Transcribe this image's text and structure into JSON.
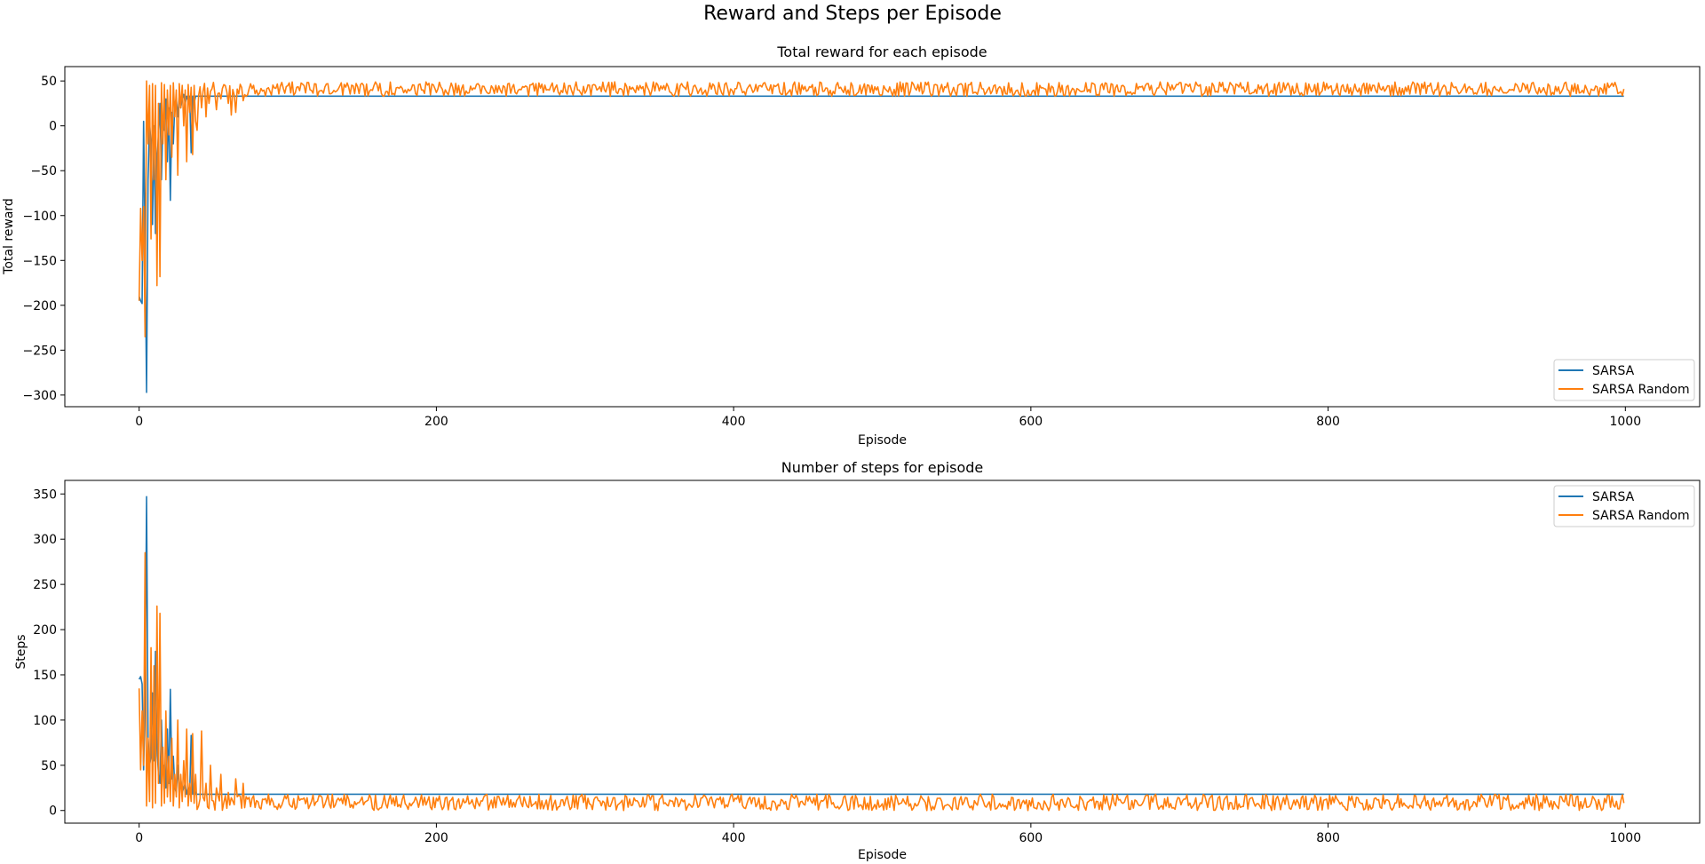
{
  "figure": {
    "title": "Reward and Steps per Episode"
  },
  "colors": {
    "sarsa": "#1f77b4",
    "sarsa_random": "#ff7f0e",
    "axis": "#000000",
    "background": "#ffffff"
  },
  "chart_data": [
    {
      "type": "line",
      "title": "Total reward for each episode",
      "xlabel": "Episode",
      "ylabel": "Total reward",
      "xlim": [
        -50,
        1050
      ],
      "ylim": [
        -313,
        66
      ],
      "xticks": [
        0,
        200,
        400,
        600,
        800,
        1000
      ],
      "yticks": [
        -300,
        -250,
        -200,
        -150,
        -100,
        -50,
        0,
        50
      ],
      "grid": false,
      "legend_position": "lower-right",
      "series": [
        {
          "name": "SARSA",
          "color": "#1f77b4",
          "early_points": [
            [
              0,
              -190
            ],
            [
              1,
              -195
            ],
            [
              2,
              -198
            ],
            [
              3,
              5
            ],
            [
              4,
              -130
            ],
            [
              5,
              -297
            ],
            [
              6,
              -60
            ],
            [
              7,
              3
            ],
            [
              8,
              -20
            ],
            [
              9,
              -110
            ],
            [
              10,
              0
            ],
            [
              11,
              -120
            ],
            [
              12,
              -40
            ],
            [
              13,
              -10
            ],
            [
              14,
              25
            ],
            [
              15,
              -60
            ],
            [
              16,
              10
            ],
            [
              17,
              -5
            ],
            [
              18,
              30
            ],
            [
              19,
              -40
            ],
            [
              20,
              20
            ],
            [
              21,
              -83
            ],
            [
              22,
              15
            ],
            [
              23,
              -20
            ],
            [
              24,
              25
            ],
            [
              25,
              30
            ],
            [
              26,
              10
            ],
            [
              27,
              33
            ],
            [
              28,
              20
            ],
            [
              29,
              30
            ],
            [
              30,
              35
            ],
            [
              31,
              25
            ],
            [
              32,
              33
            ],
            [
              33,
              28
            ],
            [
              34,
              33
            ],
            [
              35,
              -30
            ],
            [
              36,
              33
            ],
            [
              37,
              25
            ],
            [
              38,
              33
            ]
          ],
          "converged_value": 33,
          "converged_from_episode": 39,
          "last_episode": 999
        },
        {
          "name": "SARSA Random",
          "color": "#ff7f0e",
          "early_points": [
            [
              0,
              -195
            ],
            [
              1,
              -92
            ],
            [
              2,
              -150
            ],
            [
              3,
              -90
            ],
            [
              4,
              -235
            ],
            [
              5,
              50
            ],
            [
              6,
              -20
            ],
            [
              7,
              45
            ],
            [
              8,
              -126
            ],
            [
              9,
              47
            ],
            [
              10,
              -60
            ],
            [
              11,
              45
            ],
            [
              12,
              -178
            ],
            [
              13,
              25
            ],
            [
              14,
              -168
            ],
            [
              15,
              48
            ],
            [
              16,
              -20
            ],
            [
              17,
              46
            ],
            [
              18,
              -60
            ],
            [
              19,
              40
            ],
            [
              20,
              -10
            ],
            [
              21,
              45
            ],
            [
              22,
              -35
            ],
            [
              23,
              48
            ],
            [
              24,
              10
            ],
            [
              25,
              40
            ],
            [
              26,
              -55
            ],
            [
              27,
              47
            ],
            [
              28,
              20
            ],
            [
              29,
              45
            ],
            [
              30,
              0
            ],
            [
              31,
              40
            ],
            [
              32,
              -40
            ],
            [
              33,
              46
            ],
            [
              34,
              15
            ],
            [
              35,
              43
            ],
            [
              36,
              -32
            ],
            [
              37,
              45
            ],
            [
              38,
              5
            ]
          ],
          "noise_min": 33,
          "noise_max": 49,
          "noise_dips": [
            [
              39,
              -5
            ],
            [
              42,
              20
            ],
            [
              45,
              10
            ],
            [
              47,
              25
            ],
            [
              52,
              18
            ],
            [
              55,
              30
            ],
            [
              60,
              25
            ],
            [
              62,
              12
            ],
            [
              65,
              15
            ],
            [
              70,
              28
            ]
          ],
          "last_episode": 999
        }
      ]
    },
    {
      "type": "line",
      "title": "Number of steps for episode",
      "xlabel": "Episode",
      "ylabel": "Steps",
      "xlim": [
        -50,
        1050
      ],
      "ylim": [
        -14,
        365
      ],
      "xticks": [
        0,
        200,
        400,
        600,
        800,
        1000
      ],
      "yticks": [
        0,
        50,
        100,
        150,
        200,
        250,
        300,
        350
      ],
      "grid": false,
      "legend_position": "upper-right",
      "series": [
        {
          "name": "SARSA",
          "color": "#1f77b4",
          "early_points": [
            [
              0,
              145
            ],
            [
              1,
              148
            ],
            [
              2,
              140
            ],
            [
              3,
              45
            ],
            [
              4,
              120
            ],
            [
              5,
              347
            ],
            [
              6,
              80
            ],
            [
              7,
              50
            ],
            [
              8,
              60
            ],
            [
              9,
              130
            ],
            [
              10,
              55
            ],
            [
              11,
              176
            ],
            [
              12,
              70
            ],
            [
              13,
              40
            ],
            [
              14,
              30
            ],
            [
              15,
              100
            ],
            [
              16,
              40
            ],
            [
              17,
              50
            ],
            [
              18,
              25
            ],
            [
              19,
              90
            ],
            [
              20,
              30
            ],
            [
              21,
              134
            ],
            [
              22,
              35
            ],
            [
              23,
              60
            ],
            [
              24,
              25
            ],
            [
              25,
              20
            ],
            [
              26,
              50
            ],
            [
              27,
              18
            ],
            [
              28,
              35
            ],
            [
              29,
              20
            ],
            [
              30,
              25
            ],
            [
              31,
              30
            ],
            [
              32,
              18
            ],
            [
              33,
              25
            ],
            [
              34,
              18
            ],
            [
              35,
              83
            ],
            [
              36,
              18
            ],
            [
              37,
              25
            ],
            [
              38,
              18
            ]
          ],
          "converged_value": 18,
          "converged_from_episode": 39,
          "last_episode": 999
        },
        {
          "name": "SARSA Random",
          "color": "#ff7f0e",
          "early_points": [
            [
              0,
              135
            ],
            [
              1,
              45
            ],
            [
              2,
              110
            ],
            [
              3,
              50
            ],
            [
              4,
              285
            ],
            [
              5,
              5
            ],
            [
              6,
              80
            ],
            [
              7,
              10
            ],
            [
              8,
              180
            ],
            [
              9,
              3
            ],
            [
              10,
              160
            ],
            [
              11,
              8
            ],
            [
              12,
              226
            ],
            [
              13,
              30
            ],
            [
              14,
              218
            ],
            [
              15,
              5
            ],
            [
              16,
              70
            ],
            [
              17,
              8
            ],
            [
              18,
              110
            ],
            [
              19,
              15
            ],
            [
              20,
              60
            ],
            [
              21,
              10
            ],
            [
              22,
              80
            ],
            [
              23,
              5
            ],
            [
              24,
              40
            ],
            [
              25,
              15
            ],
            [
              26,
              100
            ],
            [
              27,
              3
            ],
            [
              28,
              40
            ],
            [
              29,
              10
            ],
            [
              30,
              55
            ],
            [
              31,
              15
            ],
            [
              32,
              90
            ],
            [
              33,
              5
            ],
            [
              34,
              30
            ],
            [
              35,
              10
            ],
            [
              36,
              85
            ],
            [
              37,
              8
            ],
            [
              38,
              40
            ]
          ],
          "noise_min": 0,
          "noise_max": 18,
          "noise_dips": [
            [
              40,
              5
            ],
            [
              42,
              88
            ],
            [
              45,
              30
            ],
            [
              48,
              50
            ],
            [
              52,
              25
            ],
            [
              55,
              40
            ],
            [
              60,
              20
            ],
            [
              65,
              35
            ],
            [
              70,
              30
            ]
          ],
          "last_episode": 999
        }
      ]
    }
  ]
}
